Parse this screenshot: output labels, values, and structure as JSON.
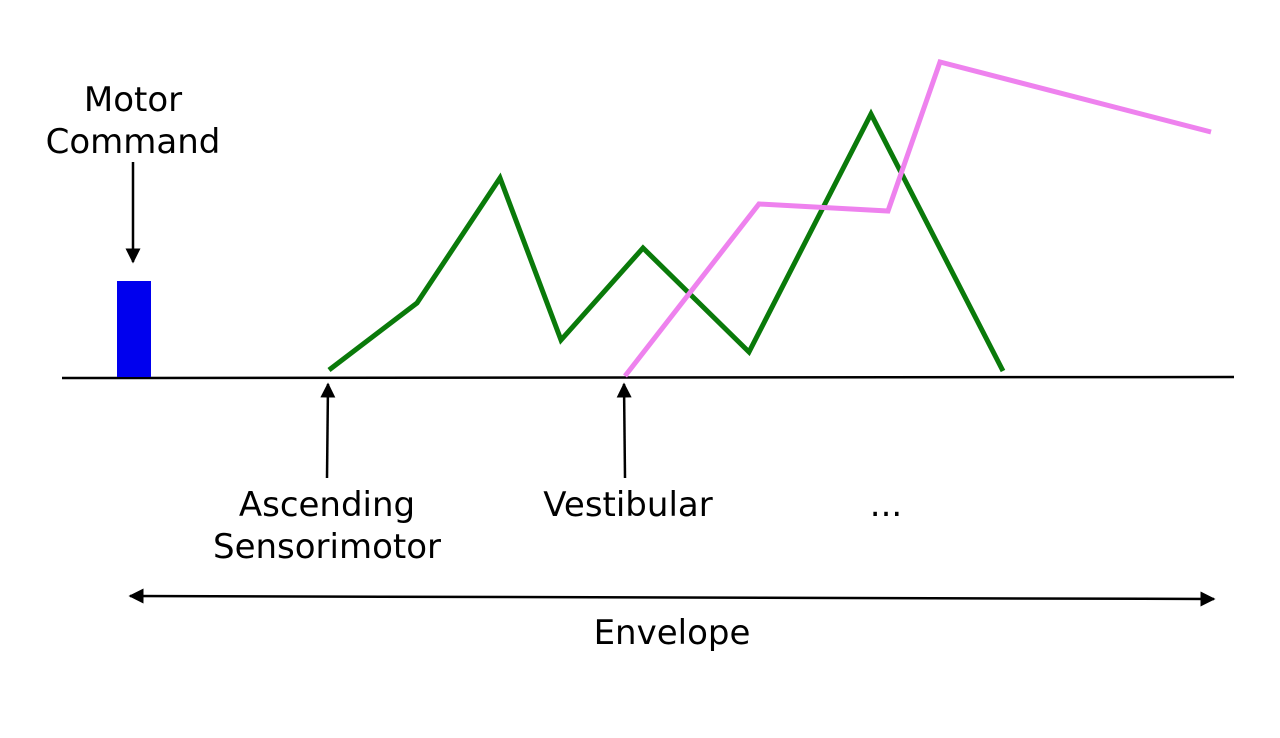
{
  "labels": {
    "motor_command": [
      "Motor",
      "Command"
    ],
    "ascending_sensorimotor": [
      "Ascending",
      "Sensorimotor"
    ],
    "vestibular": "Vestibular",
    "ellipsis": "...",
    "envelope": "Envelope"
  },
  "colors": {
    "motor_command_bar": "#0000ee",
    "ascending_sensorimotor_trace": "#0a7a0a",
    "vestibular_trace": "#ee82ee",
    "axis": "#000000"
  }
}
